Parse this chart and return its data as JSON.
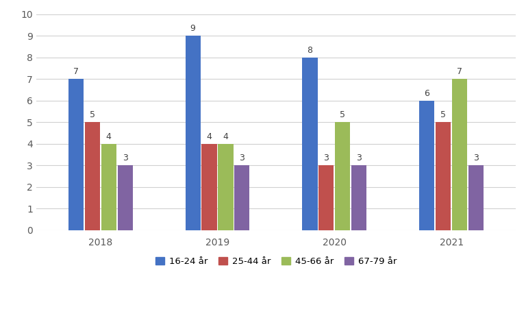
{
  "years": [
    "2018",
    "2019",
    "2020",
    "2021"
  ],
  "series": {
    "16-24 år": [
      7,
      9,
      8,
      6
    ],
    "25-44 år": [
      5,
      4,
      3,
      5
    ],
    "45-66 år": [
      4,
      4,
      5,
      7
    ],
    "67-79 år": [
      3,
      3,
      3,
      3
    ]
  },
  "colors": {
    "16-24 år": "#4472C4",
    "25-44 år": "#C0504D",
    "45-66 år": "#9BBB59",
    "67-79 år": "#8064A2"
  },
  "ylim": [
    0,
    10
  ],
  "yticks": [
    0,
    1,
    2,
    3,
    4,
    5,
    6,
    7,
    8,
    9,
    10
  ],
  "bar_width": 0.13,
  "legend_labels": [
    "16-24 år",
    "25-44 år",
    "45-66 år",
    "67-79 år"
  ],
  "background_color": "#ffffff",
  "grid_color": "#d0d0d0",
  "label_fontsize": 9,
  "tick_fontsize": 10,
  "legend_fontsize": 9.5
}
